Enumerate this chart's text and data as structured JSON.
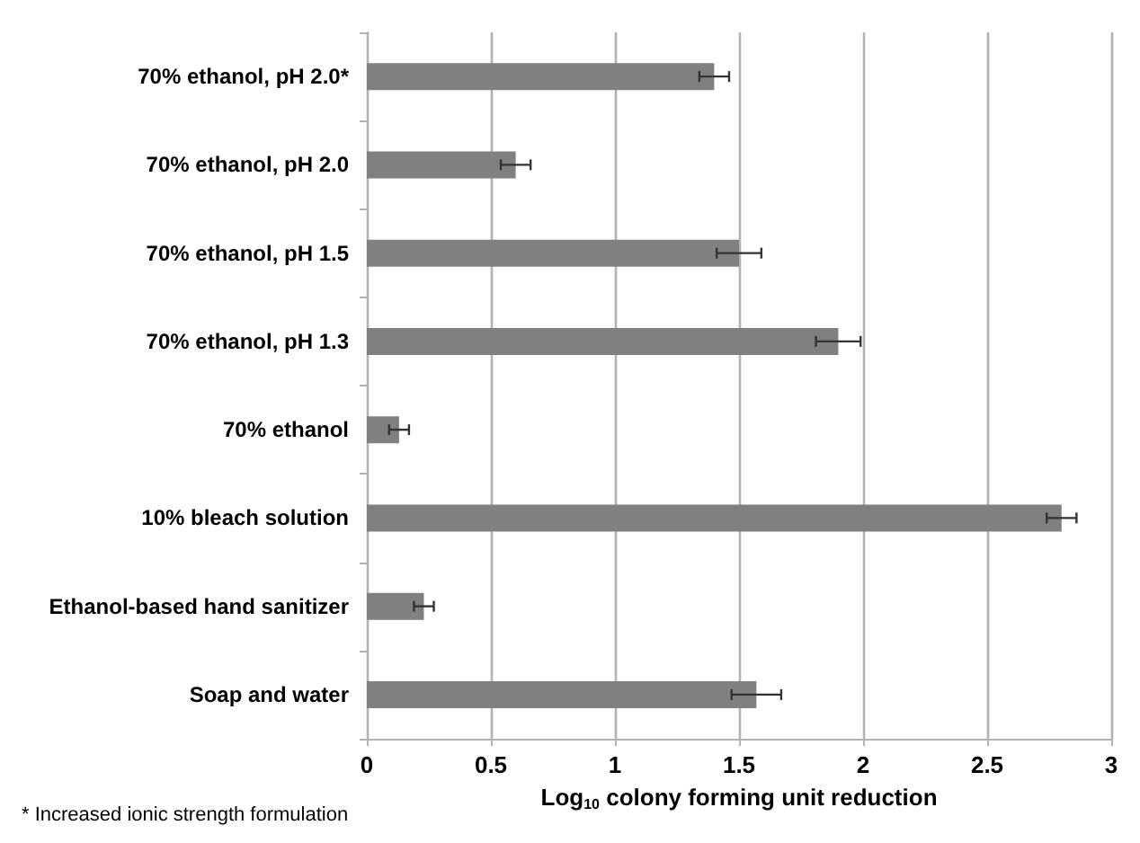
{
  "chart_data": {
    "type": "bar",
    "orientation": "horizontal",
    "categories": [
      "70% ethanol, pH 2.0*",
      "70% ethanol, pH 2.0",
      "70% ethanol, pH 1.5",
      "70% ethanol, pH 1.3",
      "70% ethanol",
      "10% bleach solution",
      "Ethanol-based hand sanitizer",
      "Soap and water"
    ],
    "values": [
      1.4,
      0.6,
      1.5,
      1.9,
      0.13,
      2.8,
      0.23,
      1.57
    ],
    "errors": [
      0.06,
      0.06,
      0.09,
      0.09,
      0.04,
      0.06,
      0.04,
      0.1
    ],
    "color": "#808080",
    "xlabel": "Log$_{10}$ colony forming unit reduction",
    "xlim": [
      0,
      3
    ],
    "xticks": [
      0,
      0.5,
      1,
      1.5,
      2,
      2.5,
      3
    ],
    "grid": "x",
    "annotations": [
      "* Increased ionic strength formulation"
    ]
  }
}
